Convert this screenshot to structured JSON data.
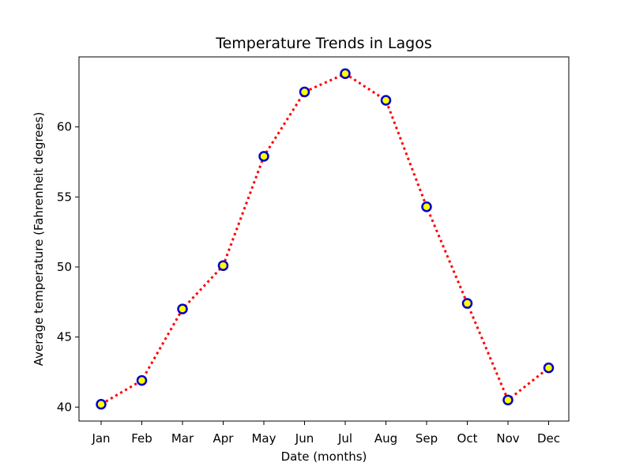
{
  "chart_data": {
    "type": "line",
    "title": "Temperature Trends in Lagos",
    "xlabel": "Date (months)",
    "ylabel": "Average temperature (Fahrenheit degrees)",
    "categories": [
      "Jan",
      "Feb",
      "Mar",
      "Apr",
      "May",
      "Jun",
      "Jul",
      "Aug",
      "Sep",
      "Oct",
      "Nov",
      "Dec"
    ],
    "series": [
      {
        "values": [
          40.2,
          41.9,
          47.0,
          50.1,
          57.9,
          62.5,
          63.8,
          61.9,
          54.3,
          47.4,
          40.5,
          42.8
        ]
      }
    ],
    "yticks": [
      40,
      45,
      50,
      55,
      60
    ],
    "ylim": [
      39.0,
      65.0
    ],
    "grid": false,
    "line_style": "dotted",
    "colors": {
      "line": "#ff0000",
      "marker_edge": "#0000cc",
      "marker_face": "#ffff00"
    }
  }
}
